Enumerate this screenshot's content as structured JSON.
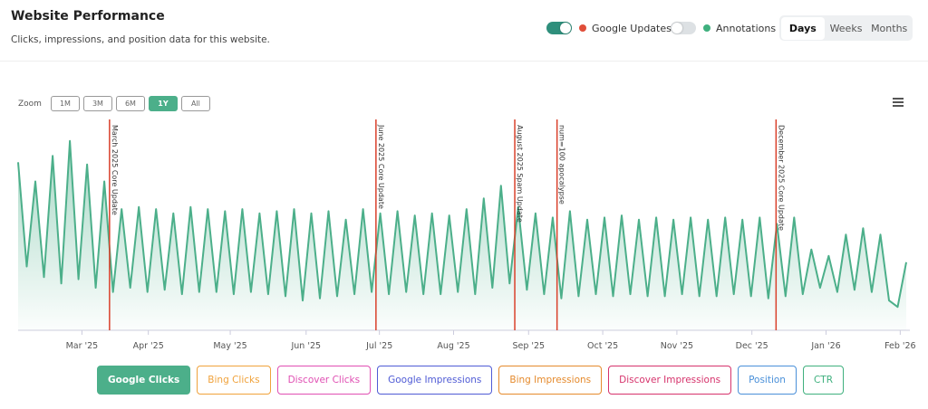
{
  "header": {
    "title": "Website Performance",
    "subtitle": "Clicks, impressions, and position data for this website."
  },
  "toggles": [
    {
      "label": "Google Updates",
      "on": true,
      "dot": "#e04e39"
    },
    {
      "label": "Annotations",
      "on": false,
      "dot": "#3fb07e"
    }
  ],
  "tabs": {
    "items": [
      "Days",
      "Weeks",
      "Months"
    ],
    "active": 0
  },
  "zoom": {
    "label": "Zoom",
    "options": [
      "1M",
      "3M",
      "6M",
      "1Y",
      "All"
    ],
    "active": 3
  },
  "chart_data": {
    "type": "line",
    "series": [
      {
        "name": "Google Clicks",
        "color": "#4caf8a",
        "values": [
          79,
          30,
          70,
          25,
          82,
          22,
          89,
          24,
          78,
          20,
          70,
          18,
          57,
          20,
          58,
          18,
          57,
          19,
          55,
          17,
          58,
          18,
          57,
          18,
          56,
          17,
          57,
          18,
          55,
          17,
          56,
          16,
          57,
          14,
          55,
          15,
          56,
          16,
          52,
          17,
          57,
          18,
          55,
          17,
          56,
          18,
          54,
          17,
          55,
          17,
          54,
          18,
          57,
          17,
          62,
          20,
          68,
          22,
          58,
          19,
          55,
          17,
          53,
          15,
          56,
          16,
          52,
          17,
          53,
          16,
          54,
          17,
          52,
          16,
          53,
          16,
          52,
          17,
          53,
          16,
          52,
          16,
          53,
          17,
          52,
          16,
          53,
          15,
          50,
          16,
          53,
          17,
          38,
          20,
          35,
          18,
          45,
          19,
          48,
          18,
          45,
          14,
          11,
          32
        ]
      }
    ],
    "xlim": [
      0,
      103
    ],
    "ylim": [
      0,
      100
    ],
    "xticks": [
      {
        "value": 7.4,
        "label": "Mar '25"
      },
      {
        "value": 15.1,
        "label": "Apr '25"
      },
      {
        "value": 24.6,
        "label": "May '25"
      },
      {
        "value": 33.4,
        "label": "Jun '25"
      },
      {
        "value": 41.9,
        "label": "Jul '25"
      },
      {
        "value": 50.5,
        "label": "Aug '25"
      },
      {
        "value": 59.2,
        "label": "Sep '25"
      },
      {
        "value": 67.8,
        "label": "Oct '25"
      },
      {
        "value": 76.4,
        "label": "Nov '25"
      },
      {
        "value": 85.1,
        "label": "Dec '25"
      },
      {
        "value": 93.7,
        "label": "Jan '26"
      },
      {
        "value": 102.3,
        "label": "Feb '26"
      }
    ],
    "annotations": [
      {
        "label": "March 2025 Core Update",
        "x": 10.6
      },
      {
        "label": "June 2025 Core Update",
        "x": 41.5
      },
      {
        "label": "August 2025 Spam Update",
        "x": 57.6
      },
      {
        "label": "num=100 apocalypse",
        "x": 62.5
      },
      {
        "label": "December 2025 Core Update",
        "x": 87.9
      }
    ],
    "annotation_color": "#d9412b"
  },
  "series_buttons": [
    {
      "label": "Google Clicks",
      "color": "#4caf8a",
      "active": true
    },
    {
      "label": "Bing Clicks",
      "color": "#f0a23b",
      "active": false
    },
    {
      "label": "Discover Clicks",
      "color": "#e04fb3",
      "active": false
    },
    {
      "label": "Google Impressions",
      "color": "#4f5bd5",
      "active": false
    },
    {
      "label": "Bing Impressions",
      "color": "#e58a2c",
      "active": false
    },
    {
      "label": "Discover Impressions",
      "color": "#d6336c",
      "active": false
    },
    {
      "label": "Position",
      "color": "#4a90d9",
      "active": false
    },
    {
      "label": "CTR",
      "color": "#3fb07e",
      "active": false
    }
  ]
}
